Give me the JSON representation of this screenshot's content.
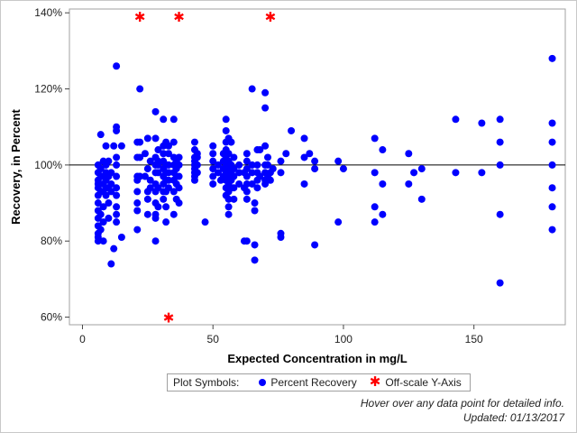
{
  "chart_data": {
    "type": "scatter",
    "xlabel": "Expected Concentration in mg/L",
    "ylabel": "Recovery, in Percent",
    "xlim": [
      -5,
      185
    ],
    "ylim": [
      58,
      141
    ],
    "x_ticks": [
      0,
      50,
      100,
      150
    ],
    "y_ticks": [
      60,
      80,
      100,
      120,
      140
    ],
    "y_tick_labels": [
      "60%",
      "80%",
      "100%",
      "120%",
      "140%"
    ],
    "x_tick_labels": [
      "0",
      "50",
      "100",
      "150"
    ],
    "reference_line_y": 100,
    "grid": false,
    "series": [
      {
        "name": "Percent Recovery",
        "marker": "circle",
        "color": "#0000ff",
        "points": [
          [
            6,
            100
          ],
          [
            6,
            98
          ],
          [
            6,
            96
          ],
          [
            6,
            95
          ],
          [
            6,
            94
          ],
          [
            6,
            92
          ],
          [
            6,
            90
          ],
          [
            6,
            88
          ],
          [
            6,
            86
          ],
          [
            6,
            84
          ],
          [
            6,
            82
          ],
          [
            6,
            81
          ],
          [
            6,
            80
          ],
          [
            7,
            108
          ],
          [
            7,
            99
          ],
          [
            7,
            97
          ],
          [
            7,
            93
          ],
          [
            7,
            87
          ],
          [
            7,
            83
          ],
          [
            8,
            101
          ],
          [
            8,
            97
          ],
          [
            8,
            95
          ],
          [
            8,
            93
          ],
          [
            8,
            89
          ],
          [
            8,
            85
          ],
          [
            8,
            80
          ],
          [
            9,
            105
          ],
          [
            9,
            100
          ],
          [
            9,
            98
          ],
          [
            9,
            96
          ],
          [
            9,
            94
          ],
          [
            9,
            92
          ],
          [
            10,
            101
          ],
          [
            10,
            97
          ],
          [
            10,
            94
          ],
          [
            10,
            90
          ],
          [
            10,
            86
          ],
          [
            11,
            98
          ],
          [
            11,
            95
          ],
          [
            11,
            93
          ],
          [
            11,
            74
          ],
          [
            12,
            105
          ],
          [
            12,
            78
          ],
          [
            13,
            126
          ],
          [
            13,
            110
          ],
          [
            13,
            109
          ],
          [
            13,
            102
          ],
          [
            13,
            100
          ],
          [
            13,
            97
          ],
          [
            13,
            94
          ],
          [
            13,
            92
          ],
          [
            13,
            89
          ],
          [
            13,
            87
          ],
          [
            13,
            85
          ],
          [
            15,
            105
          ],
          [
            15,
            81
          ],
          [
            21,
            106
          ],
          [
            21,
            102
          ],
          [
            21,
            97
          ],
          [
            21,
            96
          ],
          [
            21,
            93
          ],
          [
            21,
            90
          ],
          [
            21,
            88
          ],
          [
            21,
            83
          ],
          [
            22,
            120
          ],
          [
            22,
            106
          ],
          [
            22,
            102
          ],
          [
            22,
            97
          ],
          [
            24,
            103
          ],
          [
            24,
            97
          ],
          [
            25,
            107
          ],
          [
            25,
            99
          ],
          [
            25,
            93
          ],
          [
            25,
            91
          ],
          [
            25,
            87
          ],
          [
            26,
            101
          ],
          [
            26,
            96
          ],
          [
            26,
            94
          ],
          [
            28,
            114
          ],
          [
            28,
            107
          ],
          [
            28,
            102
          ],
          [
            28,
            100
          ],
          [
            28,
            98
          ],
          [
            28,
            95
          ],
          [
            28,
            93
          ],
          [
            28,
            90
          ],
          [
            28,
            87
          ],
          [
            28,
            86
          ],
          [
            28,
            80
          ],
          [
            29,
            104
          ],
          [
            29,
            101
          ],
          [
            29,
            100
          ],
          [
            29,
            98
          ],
          [
            29,
            94
          ],
          [
            29,
            89
          ],
          [
            31,
            112
          ],
          [
            31,
            105
          ],
          [
            31,
            103
          ],
          [
            31,
            101
          ],
          [
            31,
            99
          ],
          [
            31,
            97
          ],
          [
            31,
            95
          ],
          [
            31,
            93
          ],
          [
            31,
            91
          ],
          [
            32,
            106
          ],
          [
            32,
            100
          ],
          [
            32,
            98
          ],
          [
            32,
            96
          ],
          [
            32,
            93
          ],
          [
            32,
            89
          ],
          [
            32,
            85
          ],
          [
            33,
            105
          ],
          [
            33,
            103
          ],
          [
            33,
            100
          ],
          [
            33,
            98
          ],
          [
            33,
            96
          ],
          [
            33,
            94
          ],
          [
            35,
            112
          ],
          [
            35,
            106
          ],
          [
            35,
            102
          ],
          [
            35,
            100
          ],
          [
            35,
            98
          ],
          [
            35,
            96
          ],
          [
            35,
            93
          ],
          [
            35,
            87
          ],
          [
            36,
            101
          ],
          [
            36,
            99
          ],
          [
            36,
            97
          ],
          [
            36,
            95
          ],
          [
            36,
            91
          ],
          [
            37,
            102
          ],
          [
            37,
            100
          ],
          [
            37,
            97
          ],
          [
            37,
            94
          ],
          [
            37,
            90
          ],
          [
            43,
            106
          ],
          [
            43,
            104
          ],
          [
            43,
            102
          ],
          [
            43,
            101
          ],
          [
            43,
            100
          ],
          [
            43,
            99
          ],
          [
            43,
            98
          ],
          [
            43,
            97
          ],
          [
            43,
            96
          ],
          [
            44,
            103
          ],
          [
            44,
            102
          ],
          [
            44,
            100
          ],
          [
            44,
            98
          ],
          [
            47,
            85
          ],
          [
            50,
            105
          ],
          [
            50,
            103
          ],
          [
            50,
            101
          ],
          [
            50,
            99
          ],
          [
            50,
            97
          ],
          [
            50,
            95
          ],
          [
            52,
            100
          ],
          [
            52,
            98
          ],
          [
            53,
            96
          ],
          [
            54,
            103
          ],
          [
            54,
            101
          ],
          [
            54,
            99
          ],
          [
            54,
            97
          ],
          [
            55,
            112
          ],
          [
            55,
            109
          ],
          [
            55,
            106
          ],
          [
            55,
            104
          ],
          [
            55,
            102
          ],
          [
            55,
            100
          ],
          [
            55,
            98
          ],
          [
            55,
            96
          ],
          [
            55,
            94
          ],
          [
            55,
            92
          ],
          [
            56,
            107
          ],
          [
            56,
            103
          ],
          [
            56,
            101
          ],
          [
            56,
            99
          ],
          [
            56,
            97
          ],
          [
            56,
            95
          ],
          [
            56,
            93
          ],
          [
            56,
            91
          ],
          [
            56,
            89
          ],
          [
            56,
            87
          ],
          [
            57,
            106
          ],
          [
            57,
            100
          ],
          [
            57,
            98
          ],
          [
            57,
            96
          ],
          [
            57,
            94
          ],
          [
            58,
            102
          ],
          [
            58,
            99
          ],
          [
            58,
            97
          ],
          [
            58,
            94
          ],
          [
            58,
            91
          ],
          [
            60,
            100
          ],
          [
            60,
            98
          ],
          [
            60,
            95
          ],
          [
            62,
            98
          ],
          [
            62,
            94
          ],
          [
            62,
            80
          ],
          [
            63,
            103
          ],
          [
            63,
            101
          ],
          [
            63,
            99
          ],
          [
            63,
            97
          ],
          [
            63,
            95
          ],
          [
            63,
            93
          ],
          [
            63,
            91
          ],
          [
            63,
            80
          ],
          [
            65,
            120
          ],
          [
            65,
            100
          ],
          [
            65,
            98
          ],
          [
            65,
            95
          ],
          [
            66,
            90
          ],
          [
            66,
            88
          ],
          [
            66,
            79
          ],
          [
            66,
            75
          ],
          [
            67,
            104
          ],
          [
            67,
            100
          ],
          [
            67,
            98
          ],
          [
            67,
            96
          ],
          [
            67,
            94
          ],
          [
            68,
            104
          ],
          [
            68,
            97
          ],
          [
            70,
            119
          ],
          [
            70,
            115
          ],
          [
            70,
            105
          ],
          [
            70,
            100
          ],
          [
            70,
            98
          ],
          [
            70,
            96
          ],
          [
            70,
            95
          ],
          [
            71,
            102
          ],
          [
            71,
            100
          ],
          [
            71,
            97
          ],
          [
            72,
            98
          ],
          [
            72,
            96
          ],
          [
            73,
            99
          ],
          [
            76,
            101
          ],
          [
            76,
            98
          ],
          [
            76,
            82
          ],
          [
            76,
            81
          ],
          [
            78,
            103
          ],
          [
            80,
            109
          ],
          [
            85,
            107
          ],
          [
            85,
            102
          ],
          [
            85,
            95
          ],
          [
            87,
            103
          ],
          [
            89,
            101
          ],
          [
            89,
            99
          ],
          [
            89,
            79
          ],
          [
            98,
            101
          ],
          [
            98,
            85
          ],
          [
            100,
            99
          ],
          [
            112,
            107
          ],
          [
            112,
            98
          ],
          [
            112,
            89
          ],
          [
            112,
            85
          ],
          [
            115,
            104
          ],
          [
            115,
            95
          ],
          [
            115,
            87
          ],
          [
            125,
            103
          ],
          [
            125,
            95
          ],
          [
            127,
            98
          ],
          [
            130,
            99
          ],
          [
            130,
            91
          ],
          [
            143,
            112
          ],
          [
            143,
            98
          ],
          [
            153,
            111
          ],
          [
            153,
            98
          ],
          [
            160,
            112
          ],
          [
            160,
            106
          ],
          [
            160,
            100
          ],
          [
            160,
            87
          ],
          [
            160,
            69
          ],
          [
            180,
            128
          ],
          [
            180,
            111
          ],
          [
            180,
            106
          ],
          [
            180,
            100
          ],
          [
            180,
            94
          ],
          [
            180,
            89
          ],
          [
            180,
            83
          ]
        ]
      },
      {
        "name": "Off-scale Y-Axis",
        "marker": "star",
        "color": "#ff0000",
        "points_x_top": [
          22,
          37,
          72
        ],
        "points_x_bottom": [
          33
        ]
      }
    ]
  },
  "legend": {
    "title": "Plot Symbols:",
    "items": [
      {
        "label": "Percent Recovery",
        "symbol": "circle",
        "color": "#0000ff"
      },
      {
        "label": "Off-scale Y-Axis",
        "symbol": "star",
        "color": "#ff0000"
      }
    ]
  },
  "footnotes": {
    "hover": "Hover over any data point for detailed info.",
    "updated": "Updated: 01/13/2017"
  }
}
